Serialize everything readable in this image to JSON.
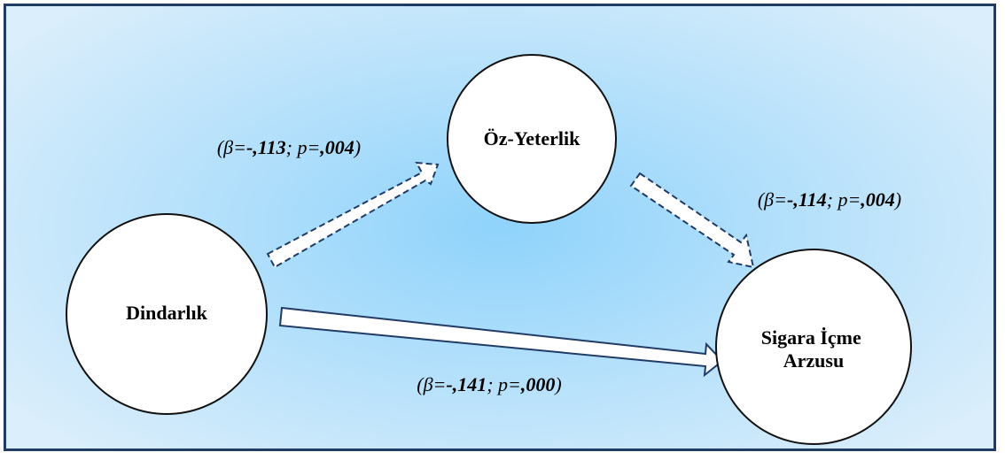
{
  "nodes": {
    "oz_yeterlik": "Öz-Yeterlik",
    "dindarlik": "Dindarlık",
    "sigara_line1": "Sigara İçme",
    "sigara_line2": "Arzusu"
  },
  "paths": {
    "dindarlik_to_oz": {
      "prefix": "(β=",
      "beta": "-,113",
      "mid": "; p=",
      "p": ",004",
      "suffix": ")",
      "style": "dashed"
    },
    "oz_to_sigara": {
      "prefix": "(β=",
      "beta": "-,114",
      "mid": "; p=",
      "p": ",004",
      "suffix": ")",
      "style": "dashed"
    },
    "dindarlik_to_sigara": {
      "prefix": "(β=",
      "beta": "-,141",
      "mid": "; p=",
      "p": ",000",
      "suffix": ")",
      "style": "solid"
    }
  },
  "colors": {
    "border": "#1f3b66",
    "background_center": "#8fd3fb",
    "background_edge": "#dbeefb"
  }
}
